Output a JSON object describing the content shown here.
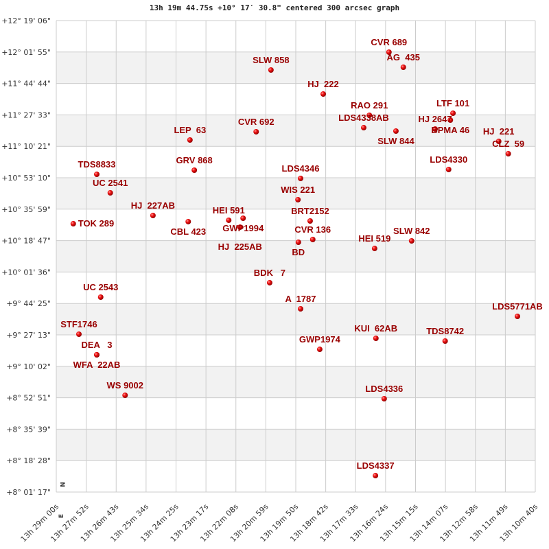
{
  "chart_data": {
    "type": "scatter",
    "title": "13h 19m 44.75s +10° 17′ 30.8\" centered 300 arcsec graph",
    "xlim": [
      "13h 29m 00s",
      "13h 10m 40s"
    ],
    "ylim": [
      "+8° 01' 17\"",
      "+12° 19' 06\""
    ],
    "grid": true,
    "compass": [
      "N",
      "E"
    ],
    "colors": {
      "marker": "#dd0000",
      "label": "#990000",
      "band": "#f2f2f2",
      "grid": "#cccccc"
    },
    "y_ticks": [
      "+12° 19' 06\"",
      "+12° 01' 55\"",
      "+11° 44' 44\"",
      "+11° 27' 33\"",
      "+11° 10' 21\"",
      "+10° 53' 10\"",
      "+10° 35' 59\"",
      "+10° 18' 47\"",
      "+10° 01' 36\"",
      "+9° 44' 25\"",
      "+9° 27' 13\"",
      "+9° 10' 02\"",
      "+8° 52' 51\"",
      "+8° 35' 39\"",
      "+8° 18' 28\"",
      "+8° 01' 17\""
    ],
    "x_ticks": [
      "13h 29m 00s",
      "13h 27m 52s",
      "13h 26m 43s",
      "13h 25m 34s",
      "13h 24m 25s",
      "13h 23m 17s",
      "13h 22m 08s",
      "13h 20m 59s",
      "13h 19m 50s",
      "13h 18m 42s",
      "13h 17m 33s",
      "13h 16m 24s",
      "13h 15m 15s",
      "13h 14m 07s",
      "13h 12m 58s",
      "13h 11m 49s",
      "13h 10m 40s"
    ],
    "points": [
      {
        "name": "CVR 689",
        "ra": "13h 16m 16s",
        "dec": "+12° 01' 50\""
      },
      {
        "name": "AG  435",
        "ra": "13h 15m 43s",
        "dec": "+11° 53' 35\""
      },
      {
        "name": "SLW 858",
        "ra": "13h 20m 47s",
        "dec": "+11° 52' 05\""
      },
      {
        "name": "HJ  222",
        "ra": "13h 18m 47s",
        "dec": "+11° 38' 57\""
      },
      {
        "name": "RAO 291",
        "ra": "13h 17m 01s",
        "dec": "+11° 27' 19\""
      },
      {
        "name": "LDS4338AB",
        "ra": "13h 17m 14s",
        "dec": "+11° 20' 33\""
      },
      {
        "name": "SLW 844",
        "ra": "13h 16m 00s",
        "dec": "+11° 18' 41\""
      },
      {
        "name": "HJ 2647",
        "ra": "13h 14m 30s",
        "dec": "+11° 19' 48\""
      },
      {
        "name": "LTF 101",
        "ra": "13h 13m 49s",
        "dec": "+11° 28' 26\""
      },
      {
        "name": "BPMA 46",
        "ra": "13h 13m 55s",
        "dec": "+11° 24' 41\""
      },
      {
        "name": "HJ  221",
        "ra": "13h 12m 04s",
        "dec": "+11° 13' 03\""
      },
      {
        "name": "CLZ  59",
        "ra": "13h 11m 42s",
        "dec": "+11° 06' 18\""
      },
      {
        "name": "LEP  63",
        "ra": "13h 23m 53s",
        "dec": "+11° 13' 48\""
      },
      {
        "name": "CVR 692",
        "ra": "13h 21m 21s",
        "dec": "+11° 18' 18\""
      },
      {
        "name": "GRV 868",
        "ra": "13h 23m 43s",
        "dec": "+10° 57' 17\""
      },
      {
        "name": "LDS4346",
        "ra": "13h 19m 39s",
        "dec": "+10° 52' 47\""
      },
      {
        "name": "LDS4330",
        "ra": "13h 13m 59s",
        "dec": "+10° 57' 40\""
      },
      {
        "name": "TDS8833",
        "ra": "13h 27m 27s",
        "dec": "+10° 55' 02\""
      },
      {
        "name": "UC 2541",
        "ra": "13h 26m 56s",
        "dec": "+10° 44' 54\""
      },
      {
        "name": "WIS 221",
        "ra": "13h 19m 45s",
        "dec": "+10° 41' 09\""
      },
      {
        "name": "HJ  227AB",
        "ra": "13h 25m 18s",
        "dec": "+10° 32' 31\""
      },
      {
        "name": "CBL 423",
        "ra": "13h 23m 57s",
        "dec": "+10° 29' 09\""
      },
      {
        "name": "HEI 591",
        "ra": "13h 22m 24s",
        "dec": "+10° 29' 54\""
      },
      {
        "name": "GWP1994",
        "ra": "13h 21m 51s",
        "dec": "+10° 31' 01\""
      },
      {
        "name": "HJ  225AB",
        "ra": "13h 21m 58s",
        "dec": "+10° 26' 08\""
      },
      {
        "name": "BRT2152",
        "ra": "13h 19m 17s",
        "dec": "+10° 29' 31\""
      },
      {
        "name": "CVR 136",
        "ra": "13h 19m 11s",
        "dec": "+10° 19' 23\""
      },
      {
        "name": "BD",
        "ra": "13h 19m 44s",
        "dec": "+10° 17' 53\""
      },
      {
        "name": "HEI 519",
        "ra": "13h 16m 49s",
        "dec": "+10° 14' 30\""
      },
      {
        "name": "SLW 842",
        "ra": "13h 15m 24s",
        "dec": "+10° 18' 38\""
      },
      {
        "name": "TOK 289",
        "ra": "13h 28m 21s",
        "dec": "+10° 28' 01\""
      },
      {
        "name": "BDK   7",
        "ra": "13h 20m 50s",
        "dec": "+9° 55' 45\""
      },
      {
        "name": "UC 2543",
        "ra": "13h 27m 18s",
        "dec": "+9° 47' 52\""
      },
      {
        "name": "A  1787",
        "ra": "13h 19m 39s",
        "dec": "+9° 41' 29\""
      },
      {
        "name": "LDS5771AB",
        "ra": "13h 11m 21s",
        "dec": "+9° 37' 21\""
      },
      {
        "name": "STF1746",
        "ra": "13h 28m 08s",
        "dec": "+9° 27' 36\""
      },
      {
        "name": "DEA   3",
        "ra": "13h 27m 27s",
        "dec": "+9° 16' 20\""
      },
      {
        "name": "WFA  22AB",
        "ra": "13h 27m 27s",
        "dec": "+9° 16' 20\""
      },
      {
        "name": "KUI  62AB",
        "ra": "13h 16m 46s",
        "dec": "+9° 25' 21\""
      },
      {
        "name": "TDS8742",
        "ra": "13h 14m 07s",
        "dec": "+9° 23' 51\""
      },
      {
        "name": "GWP1974",
        "ra": "13h 18m 55s",
        "dec": "+9° 19' 20\""
      },
      {
        "name": "WS 9002",
        "ra": "13h 26m 22s",
        "dec": "+8° 54' 12\""
      },
      {
        "name": "LDS4336",
        "ra": "13h 16m 27s",
        "dec": "+8° 52' 19\""
      },
      {
        "name": "LDS4337",
        "ra": "13h 16m 47s",
        "dec": "+8° 10' 17\""
      }
    ]
  }
}
